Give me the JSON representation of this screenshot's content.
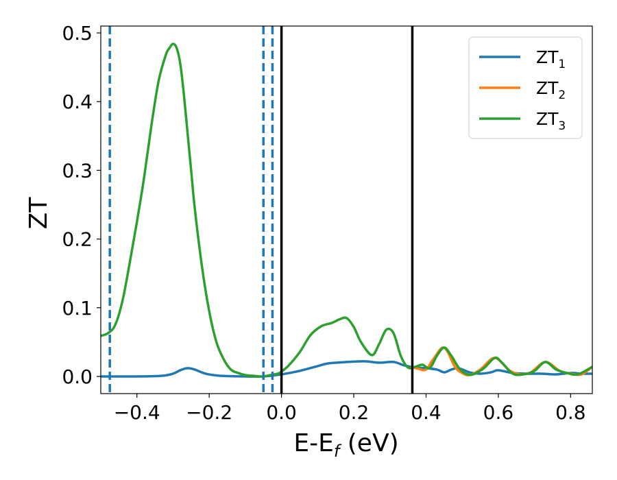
{
  "chart_data": {
    "type": "line",
    "xlabel_main": "E-E",
    "xlabel_sub": "f",
    "xlabel_unit": " (eV)",
    "ylabel": "ZT",
    "xlim": [
      -0.5,
      0.86
    ],
    "ylim": [
      -0.025,
      0.51
    ],
    "xticks": [
      -0.4,
      -0.2,
      0.0,
      0.2,
      0.4,
      0.6,
      0.8
    ],
    "xtick_labels": [
      "−0.4",
      "−0.2",
      "0.0",
      "0.2",
      "0.4",
      "0.6",
      "0.8"
    ],
    "yticks": [
      0.0,
      0.1,
      0.2,
      0.3,
      0.4,
      0.5
    ],
    "ytick_labels": [
      "0.0",
      "0.1",
      "0.2",
      "0.3",
      "0.4",
      "0.5"
    ],
    "grid": false,
    "legend_position": "top-right",
    "series": [
      {
        "name": "ZT",
        "sub": "1",
        "color": "#1f77b4",
        "x": [
          -0.5,
          -0.4,
          -0.33,
          -0.3,
          -0.28,
          -0.26,
          -0.24,
          -0.21,
          -0.17,
          -0.1,
          -0.05,
          0.0,
          0.05,
          0.1,
          0.13,
          0.18,
          0.23,
          0.27,
          0.31,
          0.34,
          0.37,
          0.4,
          0.43,
          0.45,
          0.47,
          0.49,
          0.52,
          0.55,
          0.58,
          0.6,
          0.64,
          0.68,
          0.72,
          0.76,
          0.8,
          0.83,
          0.86
        ],
        "y": [
          0.0,
          0.0,
          0.001,
          0.004,
          0.009,
          0.012,
          0.01,
          0.004,
          0.001,
          0.0,
          0.0,
          0.003,
          0.008,
          0.015,
          0.019,
          0.021,
          0.022,
          0.02,
          0.021,
          0.016,
          0.013,
          0.012,
          0.01,
          0.006,
          0.01,
          0.012,
          0.006,
          0.004,
          0.006,
          0.009,
          0.005,
          0.004,
          0.004,
          0.003,
          0.005,
          0.004,
          0.004
        ]
      },
      {
        "name": "ZT",
        "sub": "2",
        "color": "#ff7f0e",
        "x": [
          0.36,
          0.38,
          0.4,
          0.42,
          0.45,
          0.48,
          0.5,
          0.52,
          0.55,
          0.59,
          0.63,
          0.66,
          0.69,
          0.73,
          0.77,
          0.8,
          0.83,
          0.86
        ],
        "y": [
          0.014,
          0.011,
          0.01,
          0.025,
          0.042,
          0.014,
          0.005,
          0.002,
          0.01,
          0.027,
          0.009,
          0.003,
          0.006,
          0.021,
          0.008,
          0.004,
          0.003,
          0.014
        ]
      },
      {
        "name": "ZT",
        "sub": "3",
        "color": "#2ca02c",
        "x": [
          -0.5,
          -0.48,
          -0.46,
          -0.44,
          -0.42,
          -0.4,
          -0.38,
          -0.36,
          -0.34,
          -0.32,
          -0.31,
          -0.3,
          -0.29,
          -0.28,
          -0.27,
          -0.26,
          -0.25,
          -0.24,
          -0.22,
          -0.2,
          -0.18,
          -0.16,
          -0.14,
          -0.12,
          -0.1,
          -0.08,
          -0.06,
          -0.05,
          -0.03,
          -0.01,
          0.0,
          0.02,
          0.05,
          0.08,
          0.11,
          0.14,
          0.16,
          0.18,
          0.2,
          0.22,
          0.25,
          0.27,
          0.29,
          0.31,
          0.33,
          0.35,
          0.37,
          0.39,
          0.41,
          0.43,
          0.45,
          0.47,
          0.49,
          0.51,
          0.53,
          0.56,
          0.59,
          0.61,
          0.64,
          0.67,
          0.7,
          0.73,
          0.76,
          0.79,
          0.82,
          0.86
        ],
        "y": [
          0.059,
          0.063,
          0.075,
          0.11,
          0.165,
          0.225,
          0.29,
          0.365,
          0.43,
          0.468,
          0.478,
          0.484,
          0.478,
          0.455,
          0.41,
          0.355,
          0.3,
          0.245,
          0.16,
          0.095,
          0.05,
          0.025,
          0.01,
          0.005,
          0.002,
          0.001,
          0.0,
          0.0,
          0.002,
          0.004,
          0.007,
          0.016,
          0.035,
          0.06,
          0.073,
          0.078,
          0.083,
          0.085,
          0.072,
          0.05,
          0.031,
          0.047,
          0.068,
          0.063,
          0.03,
          0.013,
          0.014,
          0.017,
          0.012,
          0.03,
          0.042,
          0.03,
          0.013,
          0.004,
          0.003,
          0.012,
          0.027,
          0.02,
          0.004,
          0.003,
          0.008,
          0.021,
          0.01,
          0.005,
          0.003,
          0.014
        ]
      }
    ],
    "vlines": [
      {
        "x": -0.475,
        "style": "dashed",
        "color": "#1f77b4"
      },
      {
        "x": -0.05,
        "style": "dashed",
        "color": "#1f77b4"
      },
      {
        "x": -0.025,
        "style": "dashed",
        "color": "#1f77b4"
      },
      {
        "x": 0.0,
        "style": "solid",
        "color": "#000000"
      },
      {
        "x": 0.362,
        "style": "solid",
        "color": "#000000"
      }
    ]
  }
}
